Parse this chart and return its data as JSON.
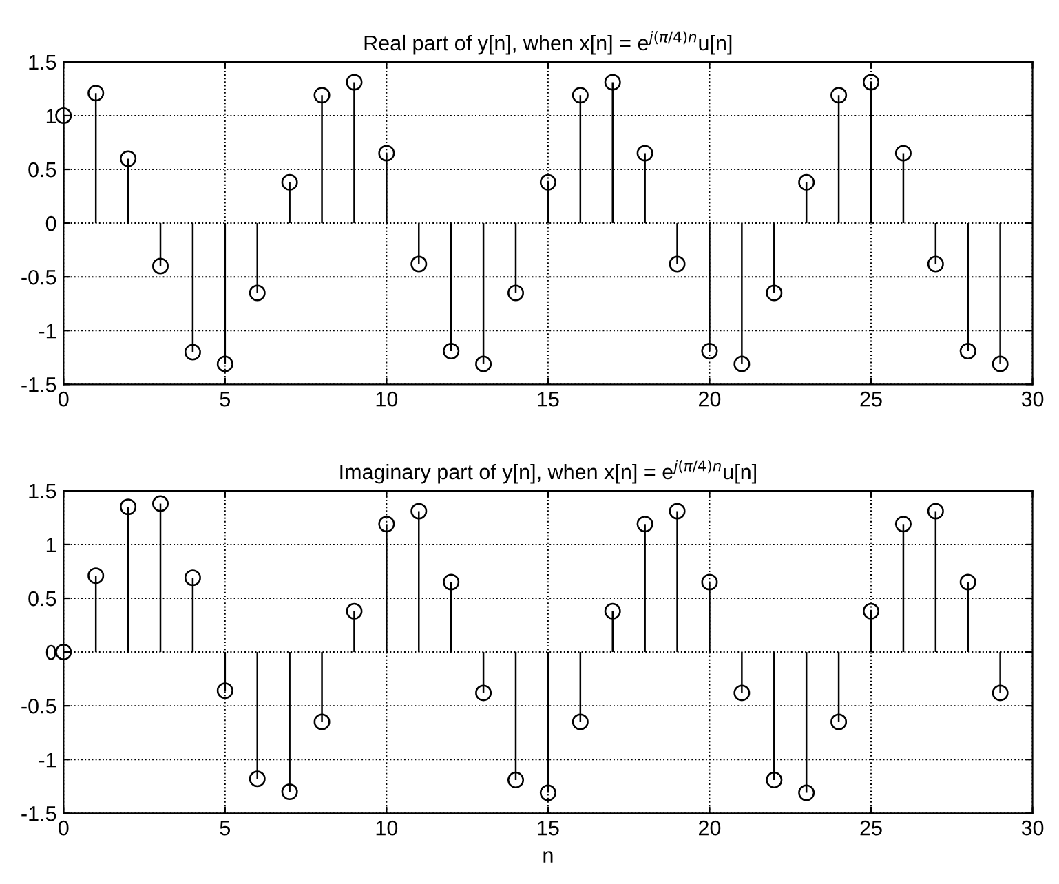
{
  "chart_data": [
    {
      "type": "lollipop",
      "title": "Real part of y[n], when x[n] = e$^{j(π/4)n}$u[n]",
      "x": [
        0,
        1,
        2,
        3,
        4,
        5,
        6,
        7,
        8,
        9,
        10,
        11,
        12,
        13,
        14,
        15,
        16,
        17,
        18,
        19,
        20,
        21,
        22,
        23,
        24,
        25,
        26,
        27,
        28,
        29
      ],
      "values": [
        1,
        1.21,
        0.6,
        -0.4,
        -1.2,
        -1.31,
        -0.65,
        0.38,
        1.19,
        1.31,
        0.65,
        -0.38,
        -1.19,
        -1.31,
        -0.65,
        0.38,
        1.19,
        1.31,
        0.65,
        -0.38,
        -1.19,
        -1.31,
        -0.65,
        0.38,
        1.19,
        1.31,
        0.65,
        -0.38,
        -1.19,
        -1.31
      ],
      "color": "#000000",
      "marker": "circle",
      "grid": true,
      "line_style": "dotted",
      "xlim": [
        0,
        30
      ],
      "xticks": [
        0,
        5,
        10,
        15,
        20,
        25,
        30
      ],
      "ylim": [
        -1.5,
        1.5
      ],
      "yticks": [
        -1.5,
        -1,
        -0.5,
        0,
        0.5,
        1,
        1.5
      ]
    },
    {
      "type": "lollipop",
      "title": "Imaginary part of y[n], when x[n] = e$^{j(π/4)n}$u[n]",
      "xlabel": "n",
      "x": [
        0,
        1,
        2,
        3,
        4,
        5,
        6,
        7,
        8,
        9,
        10,
        11,
        12,
        13,
        14,
        15,
        16,
        17,
        18,
        19,
        20,
        21,
        22,
        23,
        24,
        25,
        26,
        27,
        28,
        29
      ],
      "values": [
        0,
        0.71,
        1.35,
        1.38,
        0.69,
        -0.36,
        -1.18,
        -1.3,
        -0.65,
        0.38,
        1.19,
        1.31,
        0.65,
        -0.38,
        -1.19,
        -1.31,
        -0.65,
        0.38,
        1.19,
        1.31,
        0.65,
        -0.38,
        -1.19,
        -1.31,
        -0.65,
        0.38,
        1.19,
        1.31,
        0.65,
        -0.38
      ],
      "color": "#000000",
      "marker": "circle",
      "grid": true,
      "line_style": "dotted",
      "xlim": [
        0,
        30
      ],
      "xticks": [
        0,
        5,
        10,
        15,
        20,
        25,
        30
      ],
      "ylim": [
        -1.5,
        1.5
      ],
      "yticks": [
        -1.5,
        -1,
        -0.5,
        0,
        0.5,
        1,
        1.5
      ]
    }
  ]
}
